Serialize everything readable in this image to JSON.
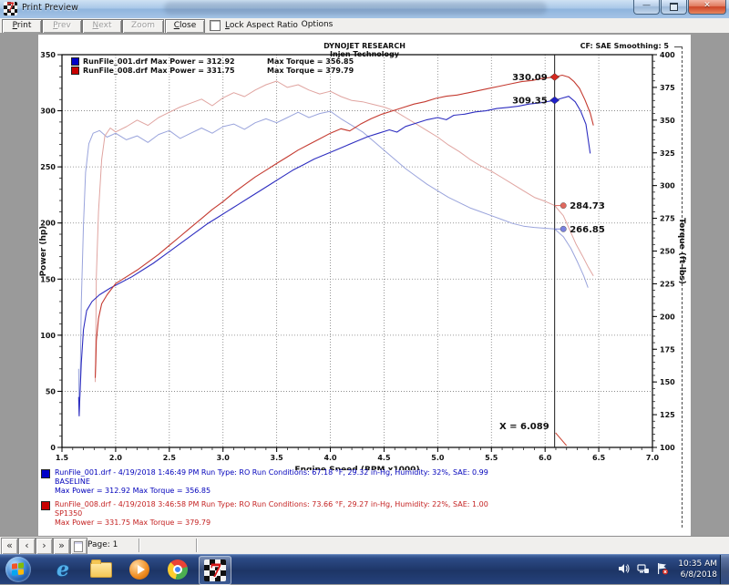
{
  "window": {
    "title": "Print Preview"
  },
  "toolbar": {
    "buttons": [
      {
        "label": "Print",
        "u": 0,
        "enabled": true
      },
      {
        "label": "Prev",
        "u": 0,
        "enabled": false
      },
      {
        "label": "Next",
        "u": 0,
        "enabled": false
      },
      {
        "label": "Zoom Out",
        "u": 5,
        "enabled": false
      },
      {
        "label": "Close",
        "u": 0,
        "enabled": true
      },
      {
        "label": "Options",
        "u": -1,
        "enabled": true
      }
    ],
    "checkbox": {
      "label": "Lock Aspect Ratio",
      "u": 0,
      "checked": false
    }
  },
  "page_header": {
    "line1": "DYNOJET RESEARCH",
    "line2": "Injen Technology",
    "right_note": "CF: SAE  Smoothing: 5"
  },
  "legend": {
    "rows": [
      {
        "name": "RunFile_001.drf",
        "power": "Max Power = 312.92",
        "torque": "Max Torque = 356.85",
        "color": "#0000c8"
      },
      {
        "name": "RunFile_008.drf",
        "power": "Max Power = 331.75",
        "torque": "Max Torque = 379.79",
        "color": "#c80000"
      }
    ]
  },
  "chart_data": {
    "type": "line",
    "title": "DYNOJET RESEARCH",
    "subtitle": "Injen Technology",
    "corner_note": "CF: SAE  Smoothing: 5",
    "x_axis": {
      "label": "Engine Speed (RPM x1000)",
      "min": 1.5,
      "max": 7.0,
      "ticks": [
        1.5,
        2.0,
        2.5,
        3.0,
        3.5,
        4.0,
        4.5,
        5.0,
        5.5,
        6.0,
        6.5,
        7.0
      ],
      "minor_step": 0.1
    },
    "y_left": {
      "label": "Power (hp)",
      "min": 0,
      "max": 350,
      "ticks": [
        0,
        50,
        100,
        150,
        200,
        250,
        300,
        350
      ],
      "minor_step": 10
    },
    "y_right": {
      "label": "Torque (ft-lbs)",
      "min": 100,
      "max": 400,
      "ticks": [
        100,
        125,
        150,
        175,
        200,
        225,
        250,
        275,
        300,
        325,
        350,
        375,
        400
      ],
      "minor_step": 5
    },
    "grid": true,
    "cursor": {
      "x": 6.089,
      "label": "X = 6.089"
    },
    "series": [
      {
        "name": "RunFile_001 torque",
        "axis": "right",
        "color": "#9aa4dc",
        "width": 1,
        "points": [
          [
            1.655,
            160
          ],
          [
            1.66,
            125
          ],
          [
            1.67,
            150
          ],
          [
            1.68,
            210
          ],
          [
            1.7,
            270
          ],
          [
            1.72,
            310
          ],
          [
            1.75,
            332
          ],
          [
            1.79,
            340
          ],
          [
            1.85,
            342
          ],
          [
            1.92,
            337
          ],
          [
            2.0,
            340
          ],
          [
            2.1,
            335
          ],
          [
            2.2,
            338
          ],
          [
            2.3,
            333
          ],
          [
            2.4,
            339
          ],
          [
            2.5,
            342
          ],
          [
            2.6,
            336
          ],
          [
            2.7,
            340
          ],
          [
            2.8,
            344
          ],
          [
            2.9,
            340
          ],
          [
            3.0,
            345
          ],
          [
            3.1,
            347
          ],
          [
            3.2,
            343
          ],
          [
            3.3,
            348
          ],
          [
            3.4,
            351
          ],
          [
            3.5,
            348
          ],
          [
            3.6,
            352
          ],
          [
            3.7,
            356
          ],
          [
            3.8,
            352
          ],
          [
            3.9,
            355
          ],
          [
            4.0,
            356.8
          ],
          [
            4.1,
            351
          ],
          [
            4.2,
            346
          ],
          [
            4.3,
            341
          ],
          [
            4.4,
            334
          ],
          [
            4.5,
            327
          ],
          [
            4.6,
            320
          ],
          [
            4.7,
            313
          ],
          [
            4.8,
            307
          ],
          [
            4.9,
            301
          ],
          [
            5.0,
            296
          ],
          [
            5.1,
            291
          ],
          [
            5.2,
            287
          ],
          [
            5.3,
            283
          ],
          [
            5.4,
            280
          ],
          [
            5.5,
            277
          ],
          [
            5.6,
            274
          ],
          [
            5.7,
            271
          ],
          [
            5.8,
            269
          ],
          [
            5.9,
            268
          ],
          [
            6.0,
            267.4
          ],
          [
            6.089,
            266.85
          ],
          [
            6.17,
            261
          ],
          [
            6.24,
            252
          ],
          [
            6.3,
            242
          ],
          [
            6.36,
            231
          ],
          [
            6.4,
            222
          ]
        ]
      },
      {
        "name": "RunFile_008 torque",
        "axis": "right",
        "color": "#e0a4a0",
        "width": 1,
        "points": [
          [
            1.81,
            150
          ],
          [
            1.815,
            180
          ],
          [
            1.82,
            230
          ],
          [
            1.84,
            280
          ],
          [
            1.87,
            320
          ],
          [
            1.9,
            338
          ],
          [
            1.95,
            344
          ],
          [
            2.0,
            341
          ],
          [
            2.1,
            345
          ],
          [
            2.2,
            350
          ],
          [
            2.3,
            346
          ],
          [
            2.4,
            352
          ],
          [
            2.5,
            356
          ],
          [
            2.6,
            360
          ],
          [
            2.7,
            363
          ],
          [
            2.8,
            366
          ],
          [
            2.9,
            361
          ],
          [
            3.0,
            367
          ],
          [
            3.1,
            371
          ],
          [
            3.2,
            368
          ],
          [
            3.3,
            373
          ],
          [
            3.4,
            377
          ],
          [
            3.5,
            379.8
          ],
          [
            3.6,
            375
          ],
          [
            3.7,
            377
          ],
          [
            3.8,
            373
          ],
          [
            3.9,
            370
          ],
          [
            4.0,
            372
          ],
          [
            4.1,
            368
          ],
          [
            4.2,
            365
          ],
          [
            4.3,
            364
          ],
          [
            4.4,
            362
          ],
          [
            4.5,
            360
          ],
          [
            4.6,
            357
          ],
          [
            4.7,
            352
          ],
          [
            4.8,
            347
          ],
          [
            4.9,
            342
          ],
          [
            5.0,
            337
          ],
          [
            5.1,
            331
          ],
          [
            5.2,
            326
          ],
          [
            5.3,
            320
          ],
          [
            5.4,
            315
          ],
          [
            5.5,
            311
          ],
          [
            5.6,
            306
          ],
          [
            5.7,
            301
          ],
          [
            5.8,
            296
          ],
          [
            5.9,
            291
          ],
          [
            6.0,
            288
          ],
          [
            6.089,
            284.73
          ],
          [
            6.17,
            277
          ],
          [
            6.23,
            266
          ],
          [
            6.29,
            255
          ],
          [
            6.35,
            246
          ],
          [
            6.4,
            238
          ],
          [
            6.45,
            231
          ]
        ]
      },
      {
        "name": "RunFile_001 power",
        "axis": "left",
        "color": "#2e2ec0",
        "width": 1.1,
        "points": [
          [
            1.655,
            45
          ],
          [
            1.66,
            28
          ],
          [
            1.665,
            40
          ],
          [
            1.68,
            75
          ],
          [
            1.7,
            105
          ],
          [
            1.73,
            122
          ],
          [
            1.78,
            130
          ],
          [
            1.85,
            136
          ],
          [
            1.95,
            142
          ],
          [
            2.05,
            147
          ],
          [
            2.15,
            152
          ],
          [
            2.25,
            158
          ],
          [
            2.35,
            164
          ],
          [
            2.45,
            171
          ],
          [
            2.55,
            178
          ],
          [
            2.65,
            185
          ],
          [
            2.75,
            192
          ],
          [
            2.85,
            199
          ],
          [
            2.95,
            205
          ],
          [
            3.05,
            211
          ],
          [
            3.15,
            217
          ],
          [
            3.25,
            223
          ],
          [
            3.35,
            229
          ],
          [
            3.45,
            235
          ],
          [
            3.55,
            241
          ],
          [
            3.65,
            247
          ],
          [
            3.75,
            252
          ],
          [
            3.85,
            257
          ],
          [
            3.95,
            261
          ],
          [
            4.05,
            265
          ],
          [
            4.15,
            269
          ],
          [
            4.25,
            273
          ],
          [
            4.35,
            277
          ],
          [
            4.45,
            280
          ],
          [
            4.55,
            283
          ],
          [
            4.62,
            281
          ],
          [
            4.7,
            286
          ],
          [
            4.8,
            289
          ],
          [
            4.9,
            292
          ],
          [
            5.0,
            294
          ],
          [
            5.08,
            292
          ],
          [
            5.15,
            296
          ],
          [
            5.25,
            297
          ],
          [
            5.35,
            299
          ],
          [
            5.45,
            300
          ],
          [
            5.55,
            302
          ],
          [
            5.65,
            303
          ],
          [
            5.75,
            304
          ],
          [
            5.85,
            306
          ],
          [
            5.95,
            307
          ],
          [
            6.089,
            309.35
          ],
          [
            6.15,
            311
          ],
          [
            6.22,
            312.9
          ],
          [
            6.28,
            308
          ],
          [
            6.33,
            300
          ],
          [
            6.38,
            288
          ],
          [
            6.42,
            262
          ]
        ]
      },
      {
        "name": "RunFile_008 power",
        "axis": "left",
        "color": "#c43a30",
        "width": 1.1,
        "points": [
          [
            1.81,
            62
          ],
          [
            1.815,
            75
          ],
          [
            1.82,
            95
          ],
          [
            1.84,
            115
          ],
          [
            1.87,
            128
          ],
          [
            1.92,
            136
          ],
          [
            2.0,
            146
          ],
          [
            2.1,
            152
          ],
          [
            2.2,
            158
          ],
          [
            2.3,
            165
          ],
          [
            2.4,
            172
          ],
          [
            2.5,
            180
          ],
          [
            2.6,
            188
          ],
          [
            2.7,
            196
          ],
          [
            2.8,
            204
          ],
          [
            2.9,
            212
          ],
          [
            3.0,
            219
          ],
          [
            3.1,
            227
          ],
          [
            3.2,
            234
          ],
          [
            3.3,
            241
          ],
          [
            3.4,
            247
          ],
          [
            3.5,
            253
          ],
          [
            3.6,
            259
          ],
          [
            3.7,
            265
          ],
          [
            3.8,
            270
          ],
          [
            3.9,
            275
          ],
          [
            4.0,
            280
          ],
          [
            4.1,
            284
          ],
          [
            4.18,
            282
          ],
          [
            4.28,
            288
          ],
          [
            4.38,
            293
          ],
          [
            4.48,
            297
          ],
          [
            4.58,
            300
          ],
          [
            4.68,
            303
          ],
          [
            4.78,
            306
          ],
          [
            4.88,
            308
          ],
          [
            4.98,
            311
          ],
          [
            5.08,
            313
          ],
          [
            5.18,
            314
          ],
          [
            5.28,
            316
          ],
          [
            5.38,
            318
          ],
          [
            5.48,
            320
          ],
          [
            5.58,
            322
          ],
          [
            5.68,
            324
          ],
          [
            5.78,
            326
          ],
          [
            5.88,
            327
          ],
          [
            5.98,
            329
          ],
          [
            6.089,
            330.09
          ],
          [
            6.16,
            331.7
          ],
          [
            6.22,
            330
          ],
          [
            6.27,
            326
          ],
          [
            6.32,
            320
          ],
          [
            6.37,
            310
          ],
          [
            6.42,
            298
          ],
          [
            6.45,
            287
          ]
        ]
      }
    ],
    "markers": [
      {
        "x": 6.089,
        "value": 330.09,
        "axis": "left",
        "label": "330.09",
        "side": "left",
        "shape": "diamond",
        "color": "#d42a20"
      },
      {
        "x": 6.089,
        "value": 309.35,
        "axis": "left",
        "label": "309.35",
        "side": "left",
        "shape": "diamond",
        "color": "#2020c8"
      },
      {
        "x": 6.17,
        "value": 284.73,
        "axis": "right",
        "label": "284.73",
        "side": "right",
        "shape": "circle",
        "color": "#e0685e"
      },
      {
        "x": 6.17,
        "value": 266.85,
        "axis": "right",
        "label": "266.85",
        "side": "right",
        "shape": "circle",
        "color": "#7a82e0"
      }
    ]
  },
  "info": {
    "runs": [
      {
        "color": "#0000bb",
        "square": "#0000c8",
        "line1": "RunFile_001.drf - 4/19/2018 1:46:49 PM  Run Type: RO  Run Conditions: 67.18 °F, 29.32 in-Hg,  Humidity:  32%, SAE: 0.99",
        "line2": "BASELINE",
        "line3": "Max Power = 312.92  Max Torque = 356.85"
      },
      {
        "color": "#c42222",
        "square": "#c80000",
        "line1": "RunFile_008.drf - 4/19/2018 3:46:58 PM  Run Type: RO  Run Conditions: 73.66 °F, 29.27 in-Hg,  Humidity:  22%, SAE: 1.00",
        "line2": "SP1350",
        "line3": "Max Power = 331.75  Max Torque = 379.79"
      }
    ]
  },
  "statusbar": {
    "nav": [
      "«",
      "‹",
      "›",
      "»"
    ],
    "page_label": "Page: 1"
  },
  "taskbar": {
    "clock_time": "10:35 AM",
    "clock_date": "6/8/2018"
  }
}
